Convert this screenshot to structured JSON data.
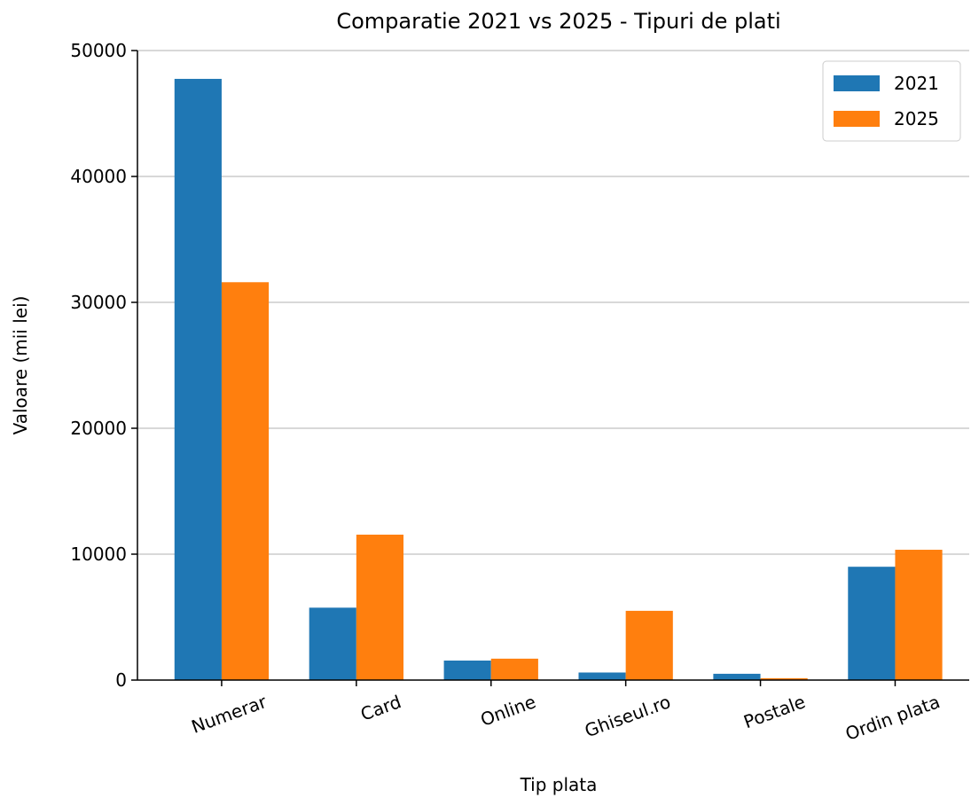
{
  "chart_data": {
    "type": "bar",
    "title": "Comparatie 2021 vs 2025 - Tipuri de plati",
    "x_label": "Tip plata",
    "y_label": "Valoare (mii lei)",
    "categories": [
      "Numerar",
      "Card",
      "Online",
      "Ghiseul.ro",
      "Postale",
      "Ordin plata"
    ],
    "series": [
      {
        "name": "2021",
        "color": "#1f77b4",
        "values": [
          47750,
          5750,
          1550,
          600,
          500,
          9000
        ]
      },
      {
        "name": "2025",
        "color": "#ff7f0e",
        "values": [
          31600,
          11550,
          1700,
          5500,
          150,
          10350
        ]
      }
    ],
    "ylim": [
      0,
      50000
    ],
    "yticks": [
      0,
      10000,
      20000,
      30000,
      40000,
      50000
    ],
    "grid": true,
    "legend": "upper right"
  }
}
